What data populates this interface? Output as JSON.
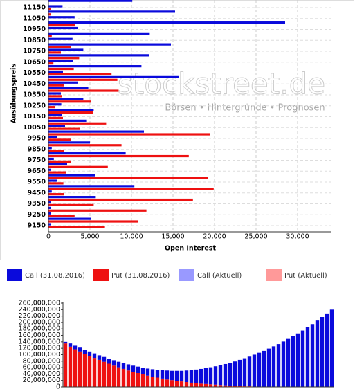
{
  "chart_data": [
    {
      "type": "bar",
      "horizontal": true,
      "y_label": "Ausübungspreis",
      "x_label": "Open Interest",
      "annotations": [
        "stockstreet.de",
        "Börsen • Hintergründe • Prognosen"
      ],
      "categories": [
        null,
        "11150",
        null,
        "11050",
        null,
        "10950",
        null,
        "10850",
        null,
        "10750",
        null,
        "10650",
        null,
        "10550",
        null,
        "10450",
        null,
        "10350",
        null,
        "10250",
        null,
        "10150",
        null,
        "10050",
        null,
        "9950",
        null,
        "9850",
        null,
        "9750",
        null,
        "9650",
        null,
        "9550",
        null,
        "9450",
        null,
        "9350",
        null,
        "9250",
        null,
        "9150"
      ],
      "series": [
        {
          "name": "Call (31.08.2016)",
          "color": "#0a0adc",
          "values": [
            10100,
            1700,
            15250,
            3150,
            28500,
            3500,
            12200,
            2900,
            14750,
            4200,
            12100,
            3000,
            11200,
            1750,
            15750,
            3500,
            4800,
            1500,
            4200,
            1550,
            5450,
            1650,
            4550,
            2000,
            11500,
            1000,
            5000,
            400,
            9300,
            650,
            2250,
            250,
            5650,
            1000,
            10350,
            400,
            5700,
            250,
            250,
            250,
            5150,
            250
          ]
        },
        {
          "name": "Put (31.08.2016)",
          "color": "#ee1111",
          "values": [
            0,
            300,
            300,
            0,
            3200,
            0,
            400,
            0,
            2750,
            1500,
            3700,
            600,
            3050,
            7600,
            8300,
            1900,
            8450,
            1650,
            5150,
            750,
            5400,
            1750,
            6950,
            3800,
            19500,
            2750,
            8800,
            1850,
            16900,
            2750,
            7150,
            2150,
            19250,
            1800,
            19900,
            1900,
            17400,
            5450,
            11800,
            3150,
            10800,
            6800
          ]
        }
      ],
      "legend_extra": [
        {
          "name": "Call (Aktuell)",
          "color": "#9999ff"
        },
        {
          "name": "Put (Aktuell)",
          "color": "#ff9999"
        }
      ],
      "xlim": [
        0,
        34000
      ],
      "xticks": [
        0,
        {
          "value": 5000,
          "label": "5,000"
        },
        {
          "value": 10000,
          "label": "10,000"
        },
        {
          "value": 15000,
          "label": "15,000"
        },
        {
          "value": 20000,
          "label": "20,000"
        },
        {
          "value": 25000,
          "label": "25,000"
        },
        {
          "value": 30000,
          "label": "30,000"
        }
      ],
      "grid": true
    },
    {
      "type": "bar",
      "stacked": true,
      "categories": [
        null,
        null,
        null,
        null,
        null,
        null,
        null,
        null,
        null,
        null,
        null,
        null,
        null,
        null,
        null,
        null,
        null,
        null,
        null,
        null,
        null,
        null,
        null,
        null,
        null,
        null,
        null,
        null,
        null,
        null,
        null,
        null,
        null,
        null,
        null,
        null,
        null,
        null,
        null,
        null,
        null,
        null,
        null,
        null,
        null,
        null,
        null,
        null,
        null,
        null,
        null,
        null,
        null,
        null,
        null,
        null
      ],
      "series": [
        {
          "color": "#ee1111",
          "values": [
            135000000,
            125000000,
            117000000,
            110000000,
            103000000,
            96000000,
            90000000,
            84000000,
            78000000,
            72000000,
            66000000,
            61000000,
            56000000,
            51000000,
            47000000,
            43000000,
            39000000,
            35000000,
            32000000,
            29000000,
            26000000,
            23000000,
            21000000,
            19000000,
            17000000,
            15000000,
            13000000,
            11000000,
            10000000,
            9000000,
            8000000,
            7000000,
            6000000,
            5000000,
            4000000,
            3000000,
            3000000,
            2000000,
            2000000,
            1000000,
            1000000,
            1000000,
            1000000,
            0,
            0,
            0,
            0,
            0,
            0,
            0,
            0,
            0,
            0,
            0,
            0,
            0
          ]
        },
        {
          "color": "#0a0adc",
          "values": [
            5000000,
            10000000,
            11000000,
            12000000,
            13000000,
            14000000,
            14000000,
            14000000,
            15000000,
            16000000,
            17000000,
            17000000,
            18000000,
            19000000,
            19000000,
            20000000,
            21000000,
            22000000,
            23000000,
            24000000,
            26000000,
            28000000,
            29000000,
            31000000,
            33000000,
            36000000,
            39000000,
            43000000,
            46000000,
            49000000,
            53000000,
            57000000,
            61000000,
            66000000,
            71000000,
            76000000,
            81000000,
            87000000,
            92000000,
            99000000,
            105000000,
            111000000,
            118000000,
            126000000,
            133000000,
            141000000,
            149000000,
            157000000,
            166000000,
            175000000,
            185000000,
            195000000,
            206000000,
            217000000,
            228000000,
            240000000
          ]
        }
      ],
      "ylim": [
        0,
        260000000
      ],
      "yticks": [
        0,
        {
          "value": 20000000,
          "label": "20,000,000"
        },
        {
          "value": 40000000,
          "label": "40,000,000"
        },
        {
          "value": 60000000,
          "label": "60,000,000"
        },
        {
          "value": 80000000,
          "label": "80,000,000"
        },
        {
          "value": 100000000,
          "label": "100,000,000"
        },
        {
          "value": 120000000,
          "label": "120,000,000"
        },
        {
          "value": 140000000,
          "label": "140,000,000"
        },
        {
          "value": 160000000,
          "label": "160,000,000"
        },
        {
          "value": 180000000,
          "label": "180,000,000"
        },
        {
          "value": 200000000,
          "label": "200,000,000"
        },
        {
          "value": 220000000,
          "label": "220,000,000"
        },
        {
          "value": 240000000,
          "label": "240,000,000"
        },
        {
          "value": 260000000,
          "label": "260,000,000"
        }
      ],
      "grid": false
    }
  ]
}
